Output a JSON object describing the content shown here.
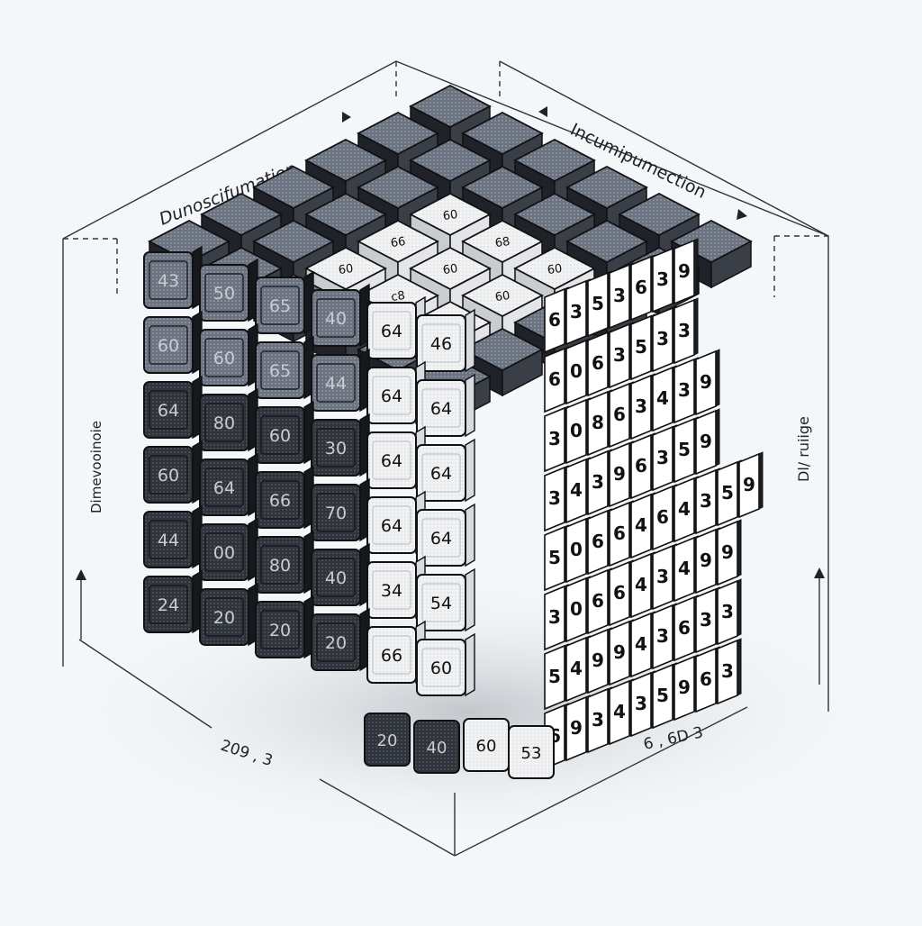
{
  "labels": {
    "top_left": "Dunoscifumation",
    "top_right": "Incumipumection",
    "left_side": "Dimevooinoie",
    "right_side": "Dl/ ruiige",
    "bottom_left": "209 , 3",
    "bottom_right": "6 , 6D 3"
  },
  "front_face": {
    "rows": [
      [
        "43",
        "50",
        "65",
        "40",
        "64",
        "46"
      ],
      [
        "60",
        "60",
        "65",
        "44",
        "64",
        "64"
      ],
      [
        "64",
        "80",
        "60",
        "30",
        "64",
        "64"
      ],
      [
        "60",
        "64",
        "66",
        "70",
        "64",
        "64"
      ],
      [
        "44",
        "00",
        "80",
        "40",
        "34",
        "54"
      ],
      [
        "24",
        "20",
        "20",
        "20",
        "66",
        "60"
      ]
    ],
    "bottom_step": [
      "20",
      "40",
      "60",
      "53"
    ]
  },
  "top_face": {
    "labels": [
      "60",
      "66",
      "68",
      "60",
      "60",
      "60",
      "c8",
      "60",
      "60",
      "60",
      "60",
      "60"
    ]
  },
  "right_face": {
    "rows": [
      [
        "6",
        "3",
        "5",
        "3",
        "6",
        "3",
        "9"
      ],
      [
        "6",
        "0",
        "6",
        "3",
        "5",
        "3",
        "3"
      ],
      [
        "3",
        "0",
        "8",
        "6",
        "3",
        "4",
        "3",
        "9"
      ],
      [
        "3",
        "4",
        "3",
        "9",
        "6",
        "3",
        "5",
        "9"
      ],
      [
        "5",
        "0",
        "6",
        "6",
        "4",
        "6",
        "4",
        "3",
        "5",
        "9"
      ],
      [
        "3",
        "0",
        "6",
        "6",
        "4",
        "3",
        "4",
        "9",
        "9"
      ],
      [
        "5",
        "4",
        "9",
        "9",
        "4",
        "3",
        "6",
        "3",
        "3"
      ],
      [
        "6",
        "9",
        "3",
        "4",
        "3",
        "5",
        "9",
        "6",
        "3"
      ]
    ]
  }
}
